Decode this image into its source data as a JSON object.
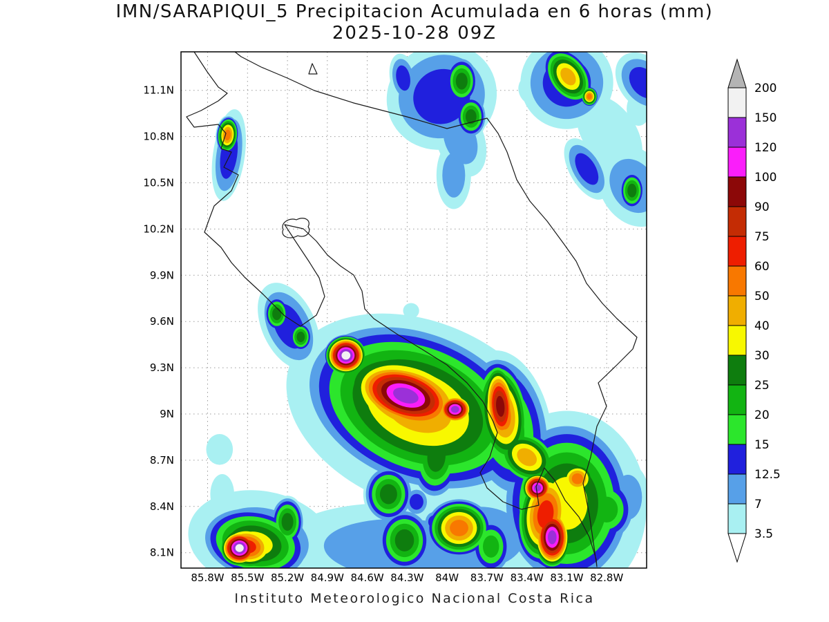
{
  "page": {
    "title_line1": "IMN/SARAPIQUI_5 Precipitacion Acumulada en 6 horas (mm)",
    "title_line2": "2025-10-28 09Z",
    "footer": "Instituto Meteorologico Nacional Costa Rica"
  },
  "axes": {
    "lat_labels": [
      "11.1N",
      "10.8N",
      "10.5N",
      "10.2N",
      "9.9N",
      "9.6N",
      "9.3N",
      "9N",
      "8.7N",
      "8.4N",
      "8.1N"
    ],
    "lat_values": [
      11.1,
      10.8,
      10.5,
      10.2,
      9.9,
      9.6,
      9.3,
      9.0,
      8.7,
      8.4,
      8.1
    ],
    "lon_labels": [
      "85.8W",
      "85.5W",
      "85.2W",
      "84.9W",
      "84.6W",
      "84.3W",
      "84W",
      "83.7W",
      "83.4W",
      "83.1W",
      "82.8W"
    ],
    "lon_values": [
      85.8,
      85.5,
      85.2,
      84.9,
      84.6,
      84.3,
      84.0,
      83.7,
      83.4,
      83.1,
      82.8
    ]
  },
  "colorbar": {
    "labels_top_to_bottom": [
      "200",
      "150",
      "120",
      "100",
      "90",
      "75",
      "60",
      "50",
      "40",
      "30",
      "25",
      "20",
      "15",
      "12.5",
      "7",
      "3.5"
    ],
    "above_max_color": "#b4b4b4",
    "below_min_color": "#ffffff"
  },
  "chart_data": {
    "type": "heatmap",
    "title": "IMN/SARAPIQUI_5 Precipitacion Acumulada en 6 horas (mm)",
    "valid_time": "2025-10-28 09Z",
    "units": "mm",
    "accumulation_hours": 6,
    "region": "Costa Rica",
    "lon_west_range": [
      86.0,
      82.5
    ],
    "lat_range": [
      8.0,
      11.35
    ],
    "levels_mm": [
      3.5,
      7,
      12.5,
      15,
      20,
      25,
      30,
      40,
      50,
      60,
      75,
      90,
      100,
      120,
      150,
      200
    ],
    "palette": [
      "#a9f0f2",
      "#57a0e8",
      "#2020dd",
      "#2ce62c",
      "#12b412",
      "#0e7d0e",
      "#f8f800",
      "#f0ae00",
      "#f87800",
      "#ee1e00",
      "#c42c04",
      "#8c0808",
      "#fa1efa",
      "#9b30d8",
      "#f2f2f2",
      "#b4b4b4"
    ],
    "cells_format": [
      "lon_west_deg",
      "lat_north_deg",
      "radius_x_deg",
      "radius_y_deg",
      "rotation_deg",
      "max_level_mm"
    ],
    "cells": [
      [
        84.76,
        9.38,
        0.17,
        0.14,
        0,
        150
      ],
      [
        84.31,
        9.12,
        0.48,
        0.23,
        18,
        120
      ],
      [
        83.94,
        9.03,
        0.15,
        0.11,
        0,
        120
      ],
      [
        84.28,
        9.1,
        0.66,
        0.34,
        20,
        60
      ],
      [
        84.22,
        9.04,
        0.92,
        0.52,
        22,
        40
      ],
      [
        84.2,
        9.0,
        1.05,
        0.6,
        22,
        7
      ],
      [
        83.6,
        9.05,
        0.14,
        0.3,
        -5,
        90
      ],
      [
        83.58,
        9.0,
        0.22,
        0.38,
        -8,
        50
      ],
      [
        83.55,
        8.92,
        0.33,
        0.5,
        -12,
        20
      ],
      [
        83.4,
        8.72,
        0.28,
        0.18,
        35,
        40
      ],
      [
        84.08,
        8.72,
        0.2,
        0.28,
        5,
        25
      ],
      [
        83.1,
        8.42,
        0.5,
        0.55,
        0,
        30
      ],
      [
        83.32,
        8.52,
        0.13,
        0.11,
        0,
        120
      ],
      [
        83.21,
        8.2,
        0.16,
        0.22,
        0,
        120
      ],
      [
        83.26,
        8.35,
        0.24,
        0.36,
        8,
        60
      ],
      [
        83.02,
        8.58,
        0.16,
        0.13,
        0,
        50
      ],
      [
        82.8,
        8.38,
        0.22,
        0.22,
        0,
        20
      ],
      [
        83.1,
        8.4,
        0.6,
        0.62,
        0,
        7
      ],
      [
        85.44,
        8.16,
        0.42,
        0.24,
        12,
        30
      ],
      [
        85.56,
        8.13,
        0.16,
        0.13,
        0,
        150
      ],
      [
        85.5,
        8.14,
        0.26,
        0.17,
        10,
        60
      ],
      [
        85.2,
        8.3,
        0.13,
        0.17,
        0,
        25
      ],
      [
        85.4,
        8.18,
        0.55,
        0.32,
        10,
        7
      ],
      [
        84.44,
        8.48,
        0.19,
        0.19,
        0,
        25
      ],
      [
        84.32,
        8.18,
        0.21,
        0.21,
        0,
        25
      ],
      [
        83.91,
        8.26,
        0.26,
        0.2,
        0,
        50
      ],
      [
        83.67,
        8.14,
        0.16,
        0.19,
        0,
        20
      ],
      [
        84.3,
        8.12,
        0.95,
        0.3,
        3,
        7
      ],
      [
        83.75,
        8.2,
        0.5,
        0.3,
        0,
        7
      ],
      [
        84.23,
        8.43,
        0.1,
        0.1,
        0,
        12.5
      ],
      [
        84.1,
        8.3,
        0.08,
        0.08,
        0,
        12.5
      ],
      [
        85.28,
        9.65,
        0.1,
        0.12,
        0,
        25
      ],
      [
        85.1,
        9.5,
        0.09,
        0.1,
        0,
        25
      ],
      [
        85.19,
        9.57,
        0.2,
        0.3,
        -25,
        12.5
      ],
      [
        85.71,
        8.77,
        0.1,
        0.1,
        0,
        3.5
      ],
      [
        85.69,
        8.48,
        0.09,
        0.13,
        0,
        3.5
      ],
      [
        84.04,
        11.06,
        0.42,
        0.34,
        -30,
        12.5
      ],
      [
        83.89,
        11.16,
        0.13,
        0.16,
        0,
        25
      ],
      [
        83.82,
        10.93,
        0.12,
        0.14,
        0,
        25
      ],
      [
        84.33,
        11.18,
        0.1,
        0.16,
        -10,
        12.5
      ],
      [
        83.95,
        10.55,
        0.13,
        0.22,
        0,
        7
      ],
      [
        83.9,
        10.78,
        0.18,
        0.25,
        -20,
        7
      ],
      [
        85.65,
        10.81,
        0.09,
        0.13,
        5,
        50
      ],
      [
        85.64,
        10.68,
        0.12,
        0.3,
        8,
        12.5
      ],
      [
        83.09,
        11.19,
        0.17,
        0.22,
        -35,
        40
      ],
      [
        82.93,
        11.06,
        0.07,
        0.07,
        0,
        50
      ],
      [
        83.1,
        11.15,
        0.35,
        0.3,
        -40,
        12.5
      ],
      [
        82.95,
        10.59,
        0.13,
        0.22,
        -30,
        12.5
      ],
      [
        82.61,
        10.45,
        0.1,
        0.13,
        0,
        25
      ],
      [
        82.6,
        10.48,
        0.25,
        0.28,
        -30,
        7
      ],
      [
        82.56,
        10.98,
        0.09,
        0.11,
        0,
        3.5
      ],
      [
        82.78,
        10.82,
        0.2,
        0.28,
        -35,
        3.5
      ],
      [
        82.52,
        11.15,
        0.18,
        0.22,
        -40,
        12.5
      ],
      [
        83.36,
        11.1,
        0.1,
        0.1,
        -30,
        3.5
      ],
      [
        82.64,
        8.46,
        0.16,
        0.22,
        0,
        7
      ],
      [
        82.87,
        8.56,
        0.07,
        0.07,
        0,
        3.5
      ],
      [
        84.27,
        9.67,
        0.06,
        0.05,
        0,
        3.5
      ],
      [
        84.5,
        8.75,
        0.22,
        0.18,
        0,
        3.5
      ]
    ]
  }
}
